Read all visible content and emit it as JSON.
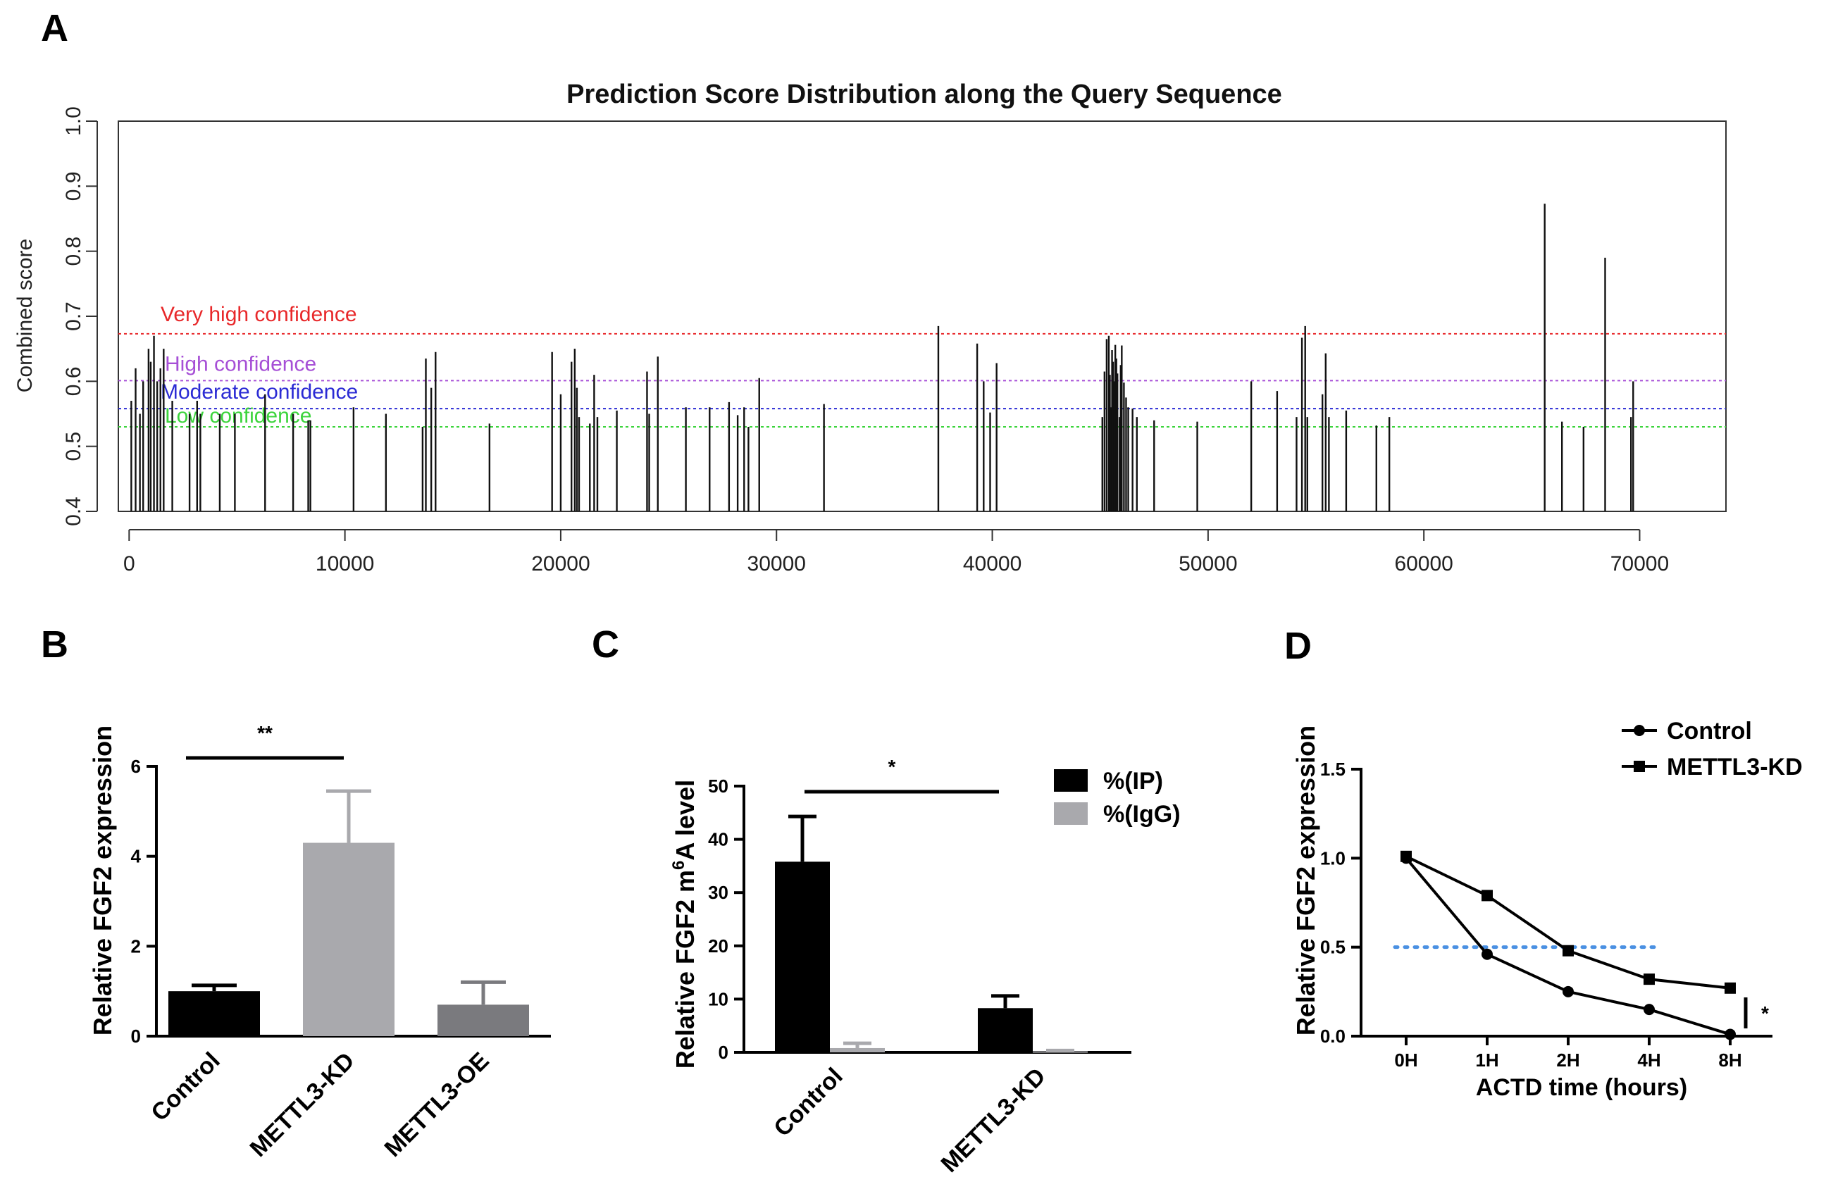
{
  "panels": {
    "a": "A",
    "b": "B",
    "c": "C",
    "d": "D"
  },
  "chart_data": [
    {
      "id": "A",
      "type": "bar",
      "title": "Prediction Score Distribution along the Query Sequence",
      "xlabel": "",
      "ylabel": "Combined score",
      "xlim": [
        -500,
        74000
      ],
      "ylim": [
        0.4,
        1.0
      ],
      "xticks": [
        "0",
        "10000",
        "20000",
        "30000",
        "40000",
        "50000",
        "60000",
        "70000"
      ],
      "yticks": [
        "0.4",
        "0.5",
        "0.6",
        "0.7",
        "0.8",
        "0.9",
        "1.0"
      ],
      "thresholds": [
        {
          "label": "Very high confidence",
          "value": 0.673,
          "color": "#e8282a"
        },
        {
          "label": "High confidence",
          "value": 0.601,
          "color": "#a64fd6"
        },
        {
          "label": "Moderate confidence",
          "value": 0.558,
          "color": "#2b2bd4"
        },
        {
          "label": "Low confidence",
          "value": 0.53,
          "color": "#3cd43c"
        }
      ],
      "positions": [
        100,
        300,
        500,
        650,
        900,
        1000,
        1150,
        1300,
        1450,
        1600,
        2000,
        2800,
        3150,
        3300,
        4200,
        4900,
        6300,
        7600,
        8300,
        8400,
        10400,
        11900,
        13600,
        13750,
        14000,
        14200,
        16700,
        19600,
        20000,
        20500,
        20650,
        20750,
        20850,
        21350,
        21550,
        21700,
        22600,
        24000,
        24100,
        24500,
        25800,
        26900,
        27800,
        28200,
        28500,
        28700,
        29200,
        32200,
        37500,
        39300,
        39600,
        39900,
        40200,
        45100,
        45200,
        45300,
        45400,
        45450,
        45500,
        45550,
        45600,
        45650,
        45700,
        45750,
        45800,
        45900,
        45950,
        46000,
        46100,
        46200,
        46300,
        46500,
        46700,
        47500,
        49500,
        52000,
        53200,
        54100,
        54350,
        54500,
        54600,
        55300,
        55450,
        55600,
        56400,
        57800,
        58400,
        65600,
        66400,
        67400,
        68400,
        69600,
        69700
      ],
      "values": [
        0.57,
        0.62,
        0.55,
        0.6,
        0.65,
        0.63,
        0.67,
        0.6,
        0.62,
        0.65,
        0.57,
        0.55,
        0.57,
        0.55,
        0.55,
        0.55,
        0.58,
        0.55,
        0.54,
        0.54,
        0.56,
        0.55,
        0.53,
        0.635,
        0.59,
        0.645,
        0.535,
        0.645,
        0.58,
        0.63,
        0.65,
        0.59,
        0.545,
        0.535,
        0.61,
        0.545,
        0.555,
        0.615,
        0.55,
        0.638,
        0.56,
        0.56,
        0.568,
        0.548,
        0.56,
        0.53,
        0.605,
        0.565,
        0.685,
        0.658,
        0.6,
        0.552,
        0.628,
        0.545,
        0.615,
        0.665,
        0.67,
        0.61,
        0.56,
        0.648,
        0.63,
        0.6,
        0.656,
        0.635,
        0.612,
        0.545,
        0.625,
        0.655,
        0.598,
        0.575,
        0.56,
        0.558,
        0.545,
        0.54,
        0.538,
        0.6,
        0.585,
        0.545,
        0.667,
        0.685,
        0.545,
        0.58,
        0.643,
        0.545,
        0.555,
        0.532,
        0.545,
        0.873,
        0.538,
        0.53,
        0.79,
        0.545,
        0.6
      ]
    },
    {
      "id": "B",
      "type": "bar",
      "title": "",
      "xlabel": "",
      "ylabel": "Relative FGF2 expression",
      "ylim": [
        0,
        6
      ],
      "yticks": [
        "0",
        "2",
        "4",
        "6"
      ],
      "categories": [
        "Control",
        "METTL3-KD",
        "METTL3-OE"
      ],
      "values": [
        1.0,
        4.3,
        0.7
      ],
      "errors": [
        0.13,
        1.15,
        0.5
      ],
      "colors": [
        "#000000",
        "#a9a9ad",
        "#7a7a7e"
      ],
      "significance": [
        {
          "from": "Control",
          "to": "METTL3-KD",
          "label": "**"
        }
      ]
    },
    {
      "id": "C",
      "type": "bar",
      "title": "",
      "xlabel": "",
      "ylabel": "Relative FGF2 m6A level",
      "ylim": [
        0,
        50
      ],
      "yticks": [
        "0",
        "10",
        "20",
        "30",
        "40",
        "50"
      ],
      "categories": [
        "Control",
        "METTL3-KD"
      ],
      "series": [
        {
          "name": "%(IP)",
          "color": "#000000",
          "values": [
            35.8,
            8.3
          ],
          "errors": [
            8.5,
            2.3
          ]
        },
        {
          "name": "%(IgG)",
          "color": "#a9a9ad",
          "values": [
            0.8,
            0.2
          ],
          "errors": [
            0.9,
            0.15
          ]
        }
      ],
      "significance": [
        {
          "from": "Control",
          "to": "METTL3-KD",
          "label": "*"
        }
      ]
    },
    {
      "id": "D",
      "type": "line",
      "title": "",
      "xlabel": "ACTD time (hours)",
      "ylabel": "Relative FGF2 expression",
      "ylim": [
        0,
        1.5
      ],
      "yticks": [
        "0.0",
        "0.5",
        "1.0",
        "1.5"
      ],
      "categories": [
        "0H",
        "1H",
        "2H",
        "4H",
        "8H"
      ],
      "series": [
        {
          "name": "Control",
          "marker": "circle",
          "values": [
            1.0,
            0.46,
            0.25,
            0.15,
            0.01
          ]
        },
        {
          "name": "METTL3-KD",
          "marker": "square",
          "values": [
            1.01,
            0.79,
            0.48,
            0.32,
            0.27
          ]
        }
      ],
      "reference_line": {
        "value": 0.5,
        "color": "#4a90e2"
      },
      "significance": [
        {
          "label": "*"
        }
      ]
    }
  ]
}
